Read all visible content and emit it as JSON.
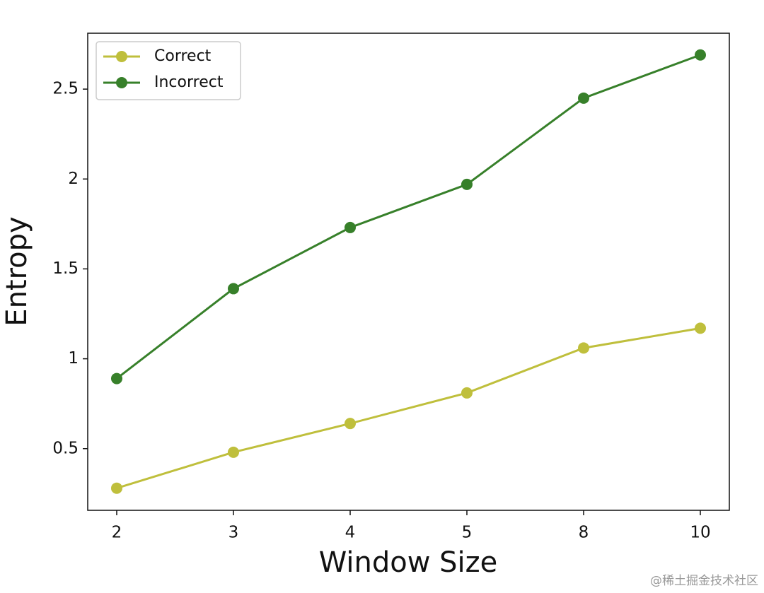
{
  "chart_data": {
    "type": "line",
    "x_label": "Window Size",
    "y_label": "Entropy",
    "categories": [
      "2",
      "3",
      "4",
      "5",
      "8",
      "10"
    ],
    "series": [
      {
        "name": "Correct",
        "color": "#bfbf3c",
        "values": [
          0.28,
          0.48,
          0.64,
          0.81,
          1.06,
          1.17
        ]
      },
      {
        "name": "Incorrect",
        "color": "#37802a",
        "values": [
          0.89,
          1.39,
          1.73,
          1.97,
          2.45,
          2.69
        ]
      }
    ],
    "ylim": [
      0.157,
      2.811
    ],
    "yticks": [
      0.5,
      1.0,
      1.5,
      2.0,
      2.5
    ],
    "legend": "upper left",
    "watermark": "@稀土掘金技术社区"
  }
}
